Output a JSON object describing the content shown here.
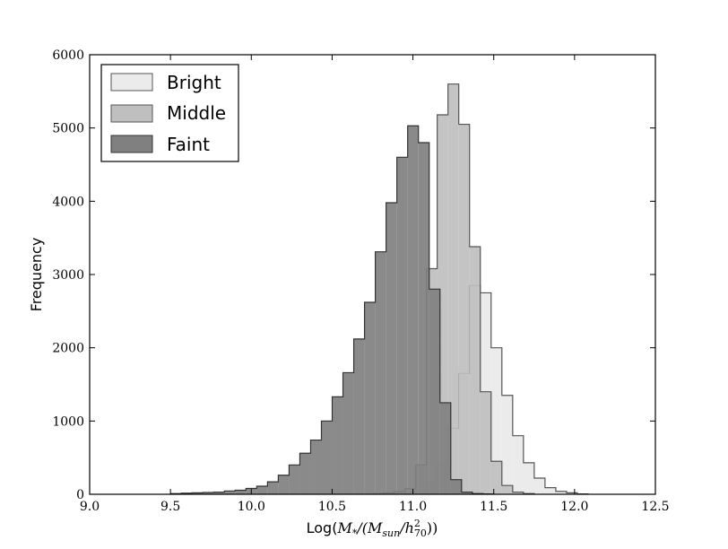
{
  "chart_data": {
    "type": "histogram",
    "xlabel_prefix": "Log(",
    "xlabel_math": "M",
    "xlabel_sub1": "*",
    "xlabel_mid": "/(M",
    "xlabel_sub2": "sun",
    "xlabel_mid2": "/h",
    "xlabel_sup": "2",
    "xlabel_sub3": "70",
    "xlabel_suffix": "))",
    "ylabel": "Frequency",
    "xlim": [
      9.0,
      12.5
    ],
    "ylim": [
      0,
      6000
    ],
    "xticks": [
      9.0,
      9.5,
      10.0,
      10.5,
      11.0,
      11.5,
      12.0,
      12.5
    ],
    "xtick_labels": [
      "9.0",
      "9.5",
      "10.0",
      "10.5",
      "11.0",
      "11.5",
      "12.0",
      "12.5"
    ],
    "yticks": [
      0,
      1000,
      2000,
      3000,
      4000,
      5000,
      6000
    ],
    "ytick_labels": [
      "0",
      "1000",
      "2000",
      "3000",
      "4000",
      "5000",
      "6000"
    ],
    "legend_position": "top-left",
    "series": [
      {
        "name": "Bright",
        "color": "#ebebeb",
        "edge": "#555555",
        "bin_start": 10.75,
        "bin_width": 0.0667,
        "values": [
          5,
          10,
          20,
          40,
          70,
          150,
          400,
          900,
          1650,
          2850,
          2750,
          2000,
          1350,
          800,
          430,
          220,
          90,
          40,
          20,
          5
        ]
      },
      {
        "name": "Middle",
        "color": "#bfbfbf",
        "edge": "#555555",
        "bin_start": 10.75,
        "bin_width": 0.0667,
        "values": [
          10,
          20,
          40,
          80,
          400,
          3080,
          5180,
          5600,
          5050,
          3380,
          1400,
          450,
          120,
          30,
          10
        ]
      },
      {
        "name": "Faint",
        "color": "#808080",
        "edge": "#333333",
        "bin_start": 9.5,
        "bin_width": 0.0667,
        "values": [
          10,
          15,
          20,
          25,
          30,
          45,
          55,
          80,
          110,
          170,
          260,
          400,
          560,
          740,
          1000,
          1330,
          1660,
          2120,
          2620,
          3310,
          3980,
          4600,
          5030,
          4800,
          2800,
          1250,
          200,
          30,
          10,
          5
        ]
      }
    ]
  }
}
